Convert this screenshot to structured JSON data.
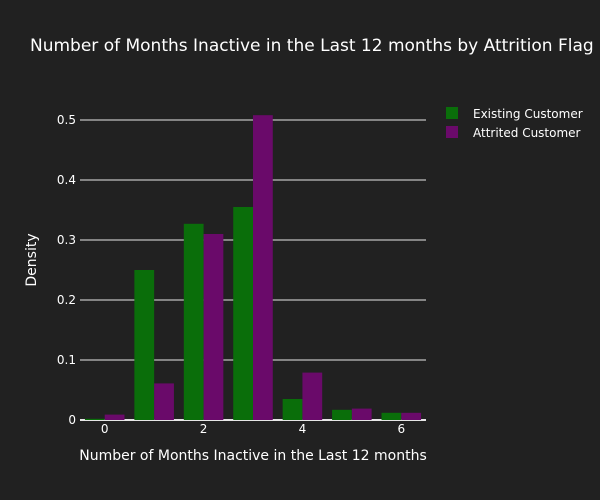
{
  "chart_data": {
    "type": "bar",
    "title": "Number of Months Inactive in the Last 12 months by Attrition Flag",
    "xlabel": "Number of Months Inactive in the Last 12 months",
    "ylabel": "Density",
    "x": [
      0,
      1,
      2,
      3,
      4,
      5,
      6
    ],
    "xlim": [
      -0.5,
      6.5
    ],
    "ylim": [
      0,
      0.55
    ],
    "x_ticks": [
      0,
      2,
      4,
      6
    ],
    "y_ticks": [
      0,
      0.1,
      0.2,
      0.3,
      0.4,
      0.5
    ],
    "x_tick_labels": [
      "0",
      "2",
      "4",
      "6"
    ],
    "y_tick_labels": [
      "0",
      "0.1",
      "0.2",
      "0.3",
      "0.4",
      "0.5"
    ],
    "grid": "horizontal",
    "legend_position": "top-right",
    "series": [
      {
        "name": "Existing Customer",
        "color": "#0a6e0a",
        "values": [
          0.002,
          0.25,
          0.327,
          0.355,
          0.035,
          0.017,
          0.012
        ]
      },
      {
        "name": "Attrited Customer",
        "color": "#6a0a6a",
        "values": [
          0.009,
          0.061,
          0.31,
          0.508,
          0.079,
          0.019,
          0.012
        ]
      }
    ]
  },
  "colors": {
    "background": "#212121",
    "gridline": "#e6e6e6",
    "text": "#ffffff"
  }
}
